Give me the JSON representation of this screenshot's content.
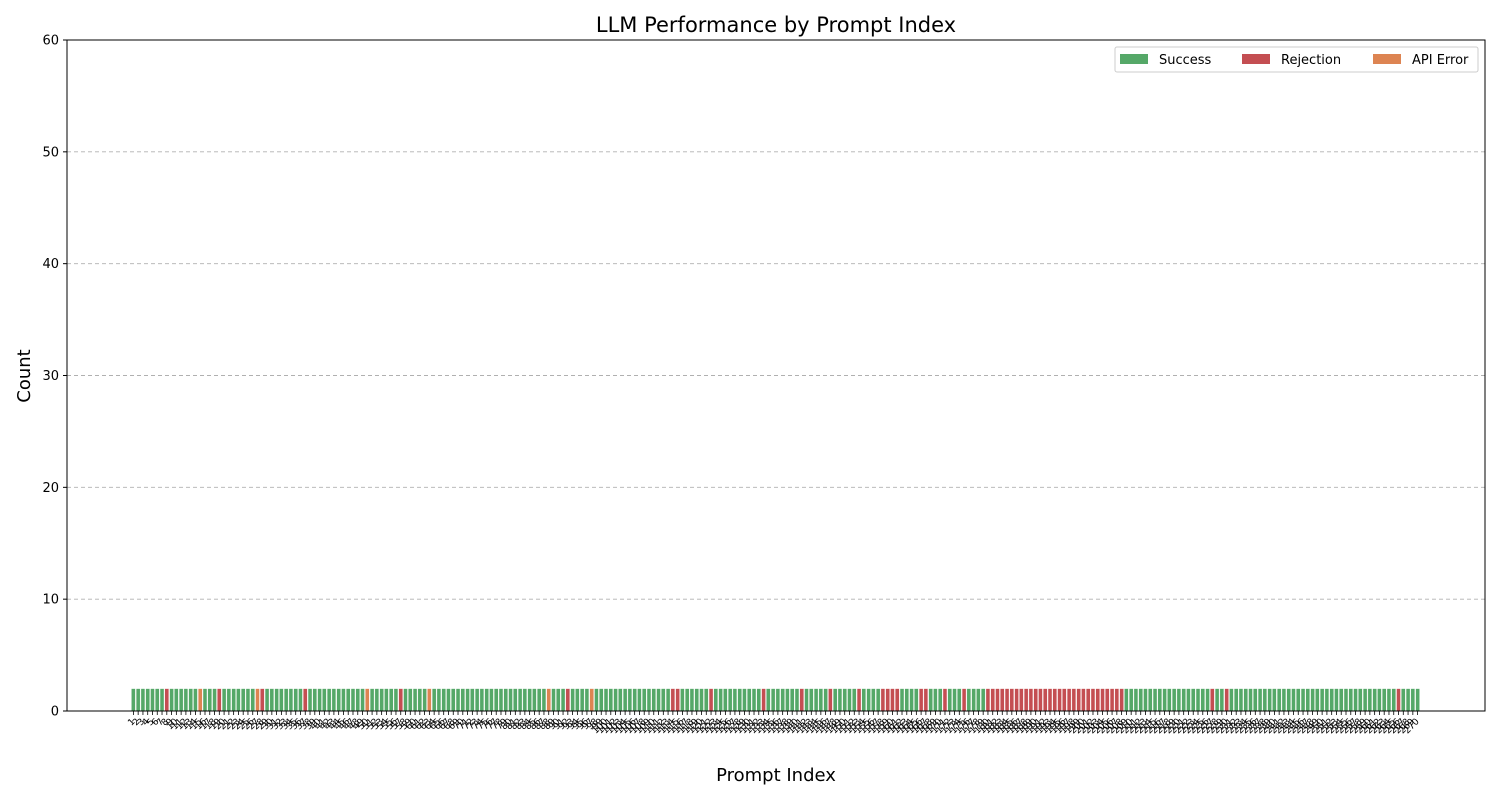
{
  "chart_data": {
    "type": "bar",
    "stacked": true,
    "title": "LLM Performance by Prompt Index",
    "xlabel": "Prompt Index",
    "ylabel": "Count",
    "ylim": [
      0,
      60
    ],
    "yticks": [
      0,
      10,
      20,
      30,
      40,
      50,
      60
    ],
    "grid": "y",
    "legend_position": "top-right",
    "series": [
      {
        "name": "Success",
        "color": "#55a868"
      },
      {
        "name": "Rejection",
        "color": "#c44e52"
      },
      {
        "name": "API Error",
        "color": "#dd8452"
      }
    ],
    "total_per_prompt": 2,
    "prompt_count": 270,
    "first_index": 1,
    "pattern": "SSSSSSSRSSSSSSASSSRSSSSSSSARSSSSSSSSRSSSSSSSSSSSSASSSSSSRSSSSSASSSSSSSSSSSSSSSSSSSSSSSSASSSRSSSSASSSSSSSSSSSSSSSSRRSSSSSSRSSSSSSSSSSRSSSSSSSRSSSSSRSSSSSRSSSSRRRRSSSSRRSSSRSSSRSSSSRRRRRRRRRRRRRRRRRRRRRRRRRRRRRSSSSSSSSSSSSSSSSSSRSSRSSSSSSSSSSSSSSSSSSSSSSSSSSSS",
    "pattern_key": {
      "S": "Success",
      "R": "Rejection",
      "A": "API Error"
    }
  }
}
